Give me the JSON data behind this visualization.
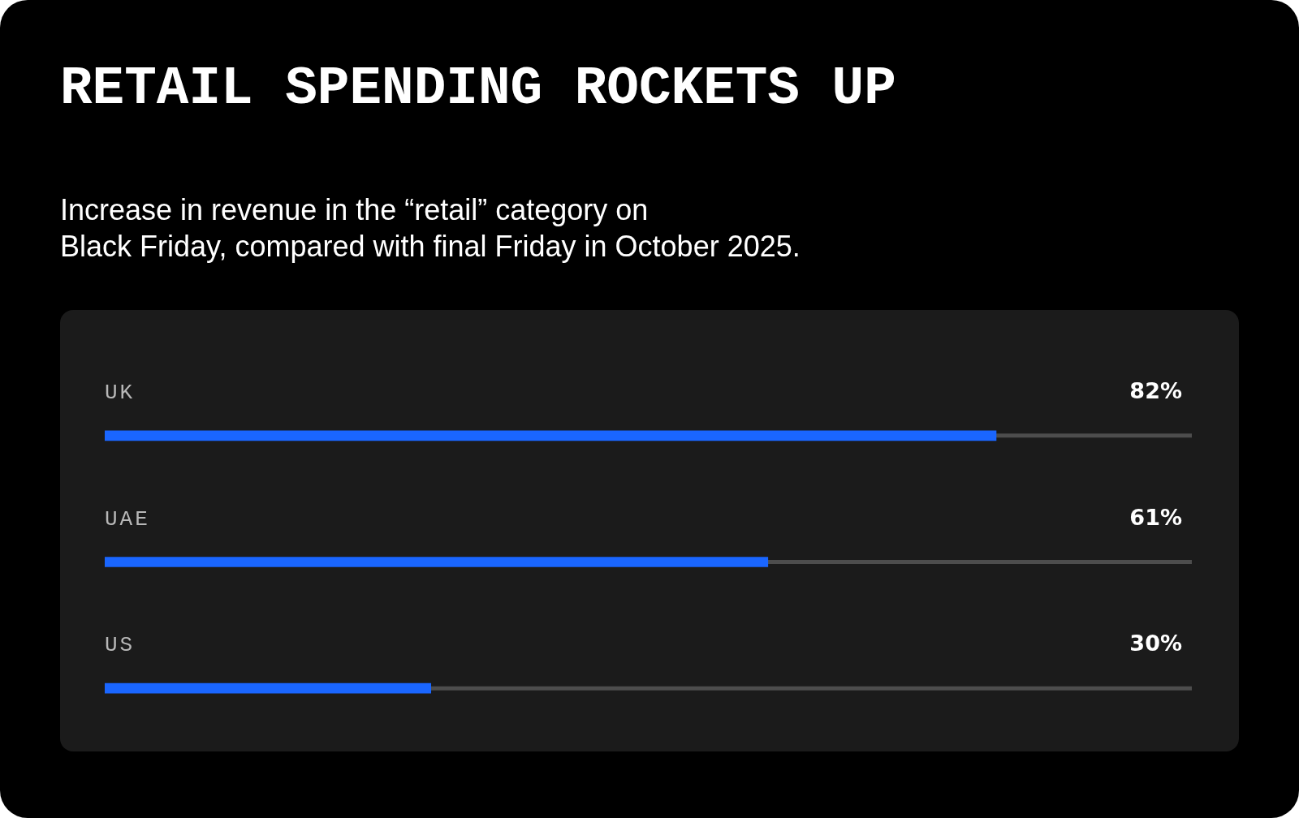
{
  "chart_data": {
    "type": "bar",
    "orientation": "horizontal",
    "title": "RETAIL SPENDING ROCKETS UP",
    "subtitle": "Increase in revenue in the “retail” category on\nBlack Friday, compared with final Friday in October 2025.",
    "categories": [
      "UK",
      "UAE",
      "US"
    ],
    "values": [
      82,
      61,
      30
    ],
    "value_labels": [
      "82%",
      "61%",
      "30%"
    ],
    "color": "#1a66ff",
    "xlim": [
      0,
      100
    ],
    "tick_labels": false
  }
}
